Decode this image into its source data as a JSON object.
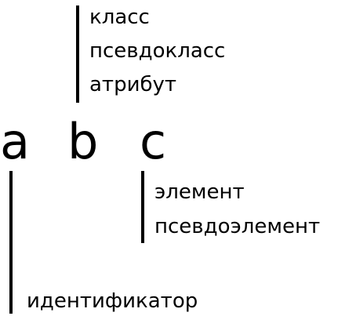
{
  "letters": {
    "a": "a",
    "b": "b",
    "c": "c"
  },
  "b_group": {
    "items": [
      "класс",
      "псевдокласс",
      "атрибут"
    ]
  },
  "c_group": {
    "items": [
      "элемент",
      "псевдоэлемент"
    ]
  },
  "a_group": {
    "items": [
      "идентификатор"
    ]
  }
}
